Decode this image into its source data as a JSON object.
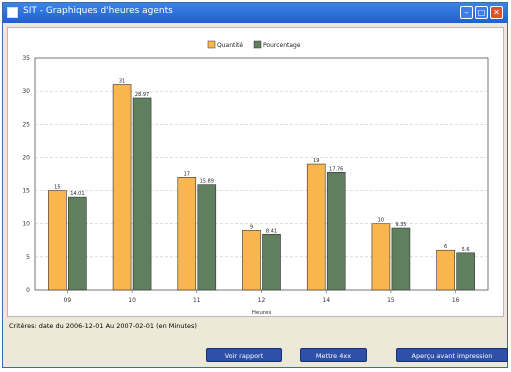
{
  "window": {
    "title": "SIT - Graphiques d'heures agents"
  },
  "chart_data": {
    "type": "bar",
    "categories": [
      "09",
      "10",
      "11",
      "12",
      "14",
      "15",
      "16"
    ],
    "series": [
      {
        "name": "Quantité",
        "values": [
          15,
          31,
          17,
          9,
          19,
          10,
          6
        ],
        "labels": [
          "15",
          "31",
          "17",
          "9",
          "19",
          "10",
          "6"
        ],
        "color": "#f9b64e"
      },
      {
        "name": "Pourcentage",
        "values": [
          14.01,
          28.97,
          15.89,
          8.41,
          17.76,
          9.35,
          5.61
        ],
        "labels": [
          "14.01",
          "28.97",
          "15.89",
          "8.41",
          "17.76",
          "9.35",
          "5.6"
        ],
        "color": "#5f7f5f"
      }
    ],
    "xlabel": "Heures",
    "ylabel": "",
    "ylim": [
      0,
      35
    ],
    "yticks": [
      "0",
      "5",
      "10",
      "15",
      "20",
      "25",
      "30",
      "35"
    ],
    "grid": true,
    "legend": "top-center"
  },
  "status": {
    "text": "Critères: date du 2006-12-01 Au 2007-02-01 (en Minutes)"
  },
  "buttons": {
    "report": "Voir rapport",
    "save": "Mettre 4xx",
    "preview": "Aperçu avant impression"
  }
}
